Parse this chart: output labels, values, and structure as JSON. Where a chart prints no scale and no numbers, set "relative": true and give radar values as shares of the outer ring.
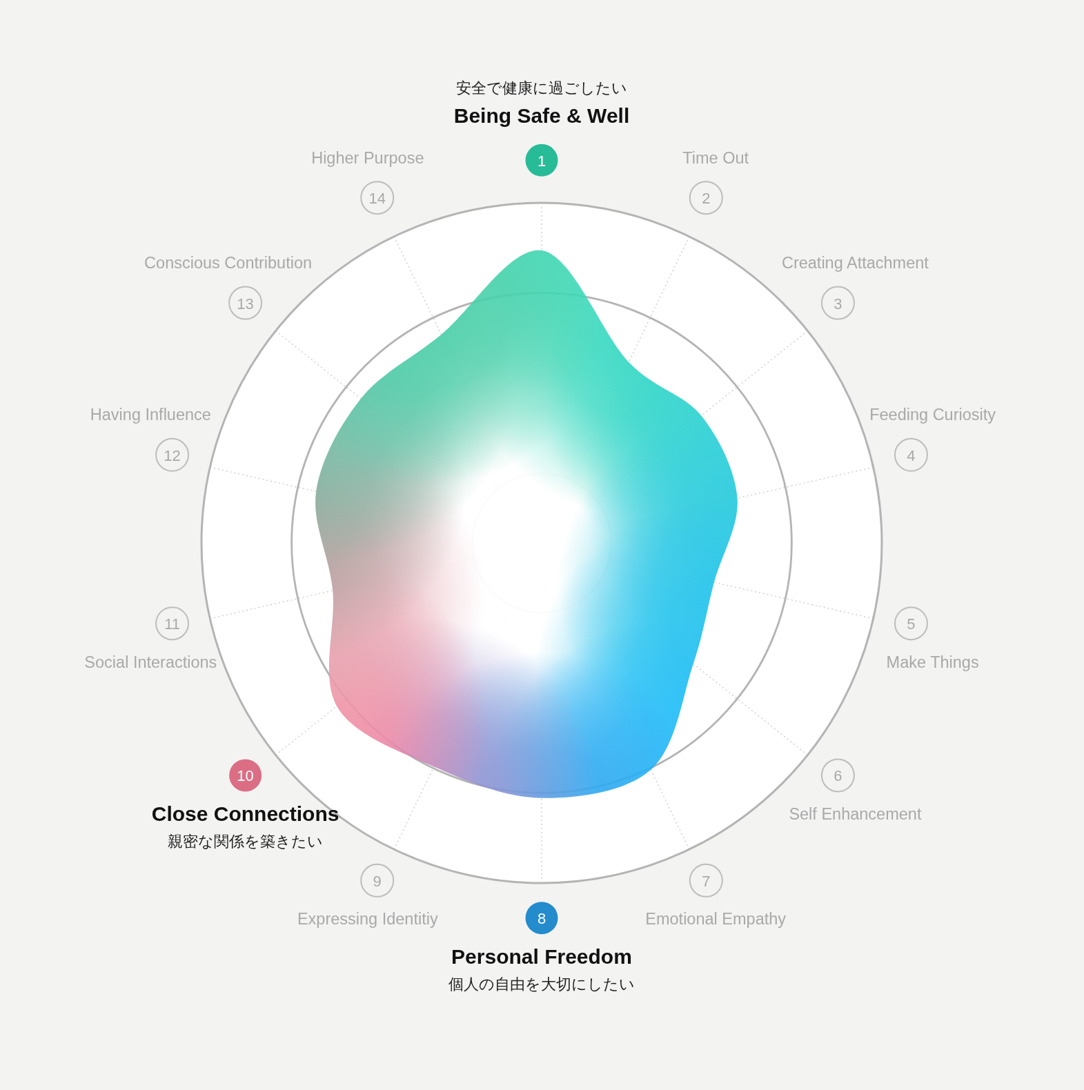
{
  "chart_data": {
    "type": "radar",
    "relative": true,
    "categories": [
      "Being Safe & Well",
      "Time Out",
      "Creating Attachment",
      "Feeding Curiosity",
      "Make Things",
      "Self Enhancement",
      "Emotional Empathy",
      "Personal Freedom",
      "Expressing Identitiy",
      "Close Connections",
      "Social Interactions",
      "Having Influence",
      "Conscious Contribution",
      "Higher Purpose"
    ],
    "series": [
      {
        "values": [
          0.86,
          0.59,
          0.6,
          0.59,
          0.52,
          0.57,
          0.74,
          0.75,
          0.73,
          0.77,
          0.63,
          0.68,
          0.68,
          0.68
        ],
        "colors": [
          "#2edab0",
          "#2fd8b8",
          "#2ad4c6",
          "#26cfd4",
          "#20c6e0",
          "#1bbfef",
          "#16b8fa",
          "#2aa2ee",
          "#9a8ccc",
          "#ff8099",
          "#e2a2ad",
          "#9c9c94",
          "#6bbba2",
          "#3fcca4"
        ]
      }
    ],
    "grid": true,
    "annotations": [
      {
        "text": "1",
        "x": "Being Safe & Well"
      },
      {
        "text": "2",
        "x": "Time Out"
      },
      {
        "text": "3",
        "x": "Creating Attachment"
      },
      {
        "text": "4",
        "x": "Feeding Curiosity"
      },
      {
        "text": "5",
        "x": "Make Things"
      },
      {
        "text": "6",
        "x": "Self Enhancement"
      },
      {
        "text": "7",
        "x": "Emotional Empathy"
      },
      {
        "text": "8",
        "x": "Personal Freedom"
      },
      {
        "text": "9",
        "x": "Expressing Identitiy"
      },
      {
        "text": "10",
        "x": "Close Connections"
      },
      {
        "text": "11",
        "x": "Social Interactions"
      },
      {
        "text": "12",
        "x": "Having Influence"
      },
      {
        "text": "13",
        "x": "Conscious Contribution"
      },
      {
        "text": "14",
        "x": "Higher Purpose"
      },
      {
        "text": "安全で健康に過ごしたい",
        "x": "Being Safe & Well"
      },
      {
        "text": "個人の自由を大切にしたい",
        "x": "Personal Freedom"
      },
      {
        "text": "親密な関係を築きたい",
        "x": "Close Connections"
      }
    ]
  }
}
